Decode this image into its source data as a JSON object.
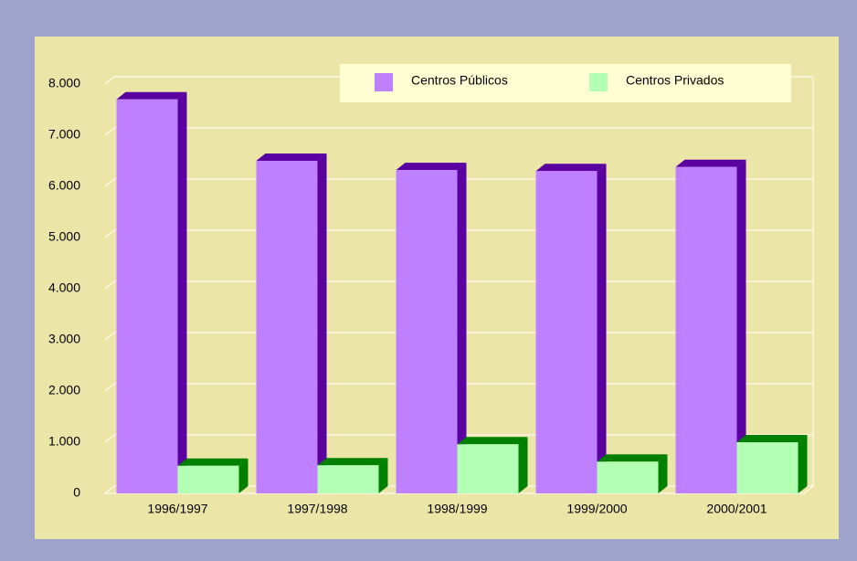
{
  "chart_data": {
    "type": "bar3d",
    "categories": [
      "1996/1997",
      "1997/1998",
      "1998/1999",
      "1999/2000",
      "2000/2001"
    ],
    "series": [
      {
        "name": "Centros Públicos",
        "color": "#bf80ff",
        "side_color": "#5a00a0",
        "values": [
          7700,
          6500,
          6320,
          6300,
          6380
        ]
      },
      {
        "name": "Centros Privados",
        "color": "#b3ffb3",
        "side_color": "#008000",
        "values": [
          540,
          550,
          960,
          620,
          1000
        ]
      }
    ],
    "ylim": [
      0,
      8000
    ],
    "yticks": [
      0,
      {
        "value": 1000,
        "label": "1.000"
      },
      {
        "value": 2000,
        "label": "2.000"
      },
      {
        "value": 3000,
        "label": "3.000"
      },
      {
        "value": 4000,
        "label": "4.000"
      },
      {
        "value": 5000,
        "label": "5.000"
      },
      {
        "value": 6000,
        "label": "6.000"
      },
      {
        "value": 7000,
        "label": "7.000"
      },
      {
        "value": 8000,
        "label": "8.000"
      }
    ],
    "grid": true,
    "legend": "top-right"
  }
}
